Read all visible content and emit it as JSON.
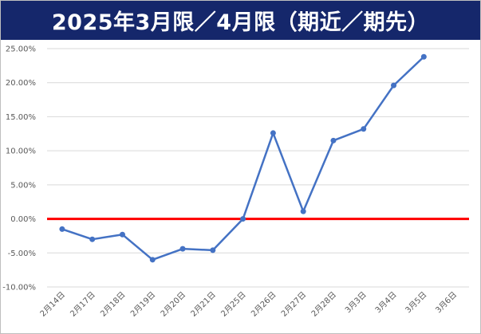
{
  "chart_data": {
    "type": "line",
    "title": "2025年3月限／4月限（期近／期先）",
    "categories": [
      "2月14日",
      "2月17日",
      "2月18日",
      "2月19日",
      "2月20日",
      "2月21日",
      "2月25日",
      "2月26日",
      "2月27日",
      "2月28日",
      "3月3日",
      "3月4日",
      "3月5日",
      "3月6日"
    ],
    "series": [
      {
        "values": [
          -1.5,
          -3.0,
          -2.3,
          -6.0,
          -4.4,
          -4.6,
          0.0,
          12.6,
          1.1,
          11.5,
          13.2,
          19.6,
          23.8,
          null
        ]
      }
    ],
    "ylim": [
      -10,
      25
    ],
    "yticks": [
      -10,
      -5,
      0,
      5,
      10,
      15,
      20,
      25
    ],
    "ytick_labels": [
      "-10.00%",
      "-5.00%",
      "0.00%",
      "5.00%",
      "10.00%",
      "15.00%",
      "20.00%",
      "25.00%"
    ],
    "xlabel": "",
    "ylabel": "",
    "grid": true,
    "line_color": "#4472c4",
    "zero_line_color": "#ff0000",
    "title_bar_color": "#15276b"
  }
}
